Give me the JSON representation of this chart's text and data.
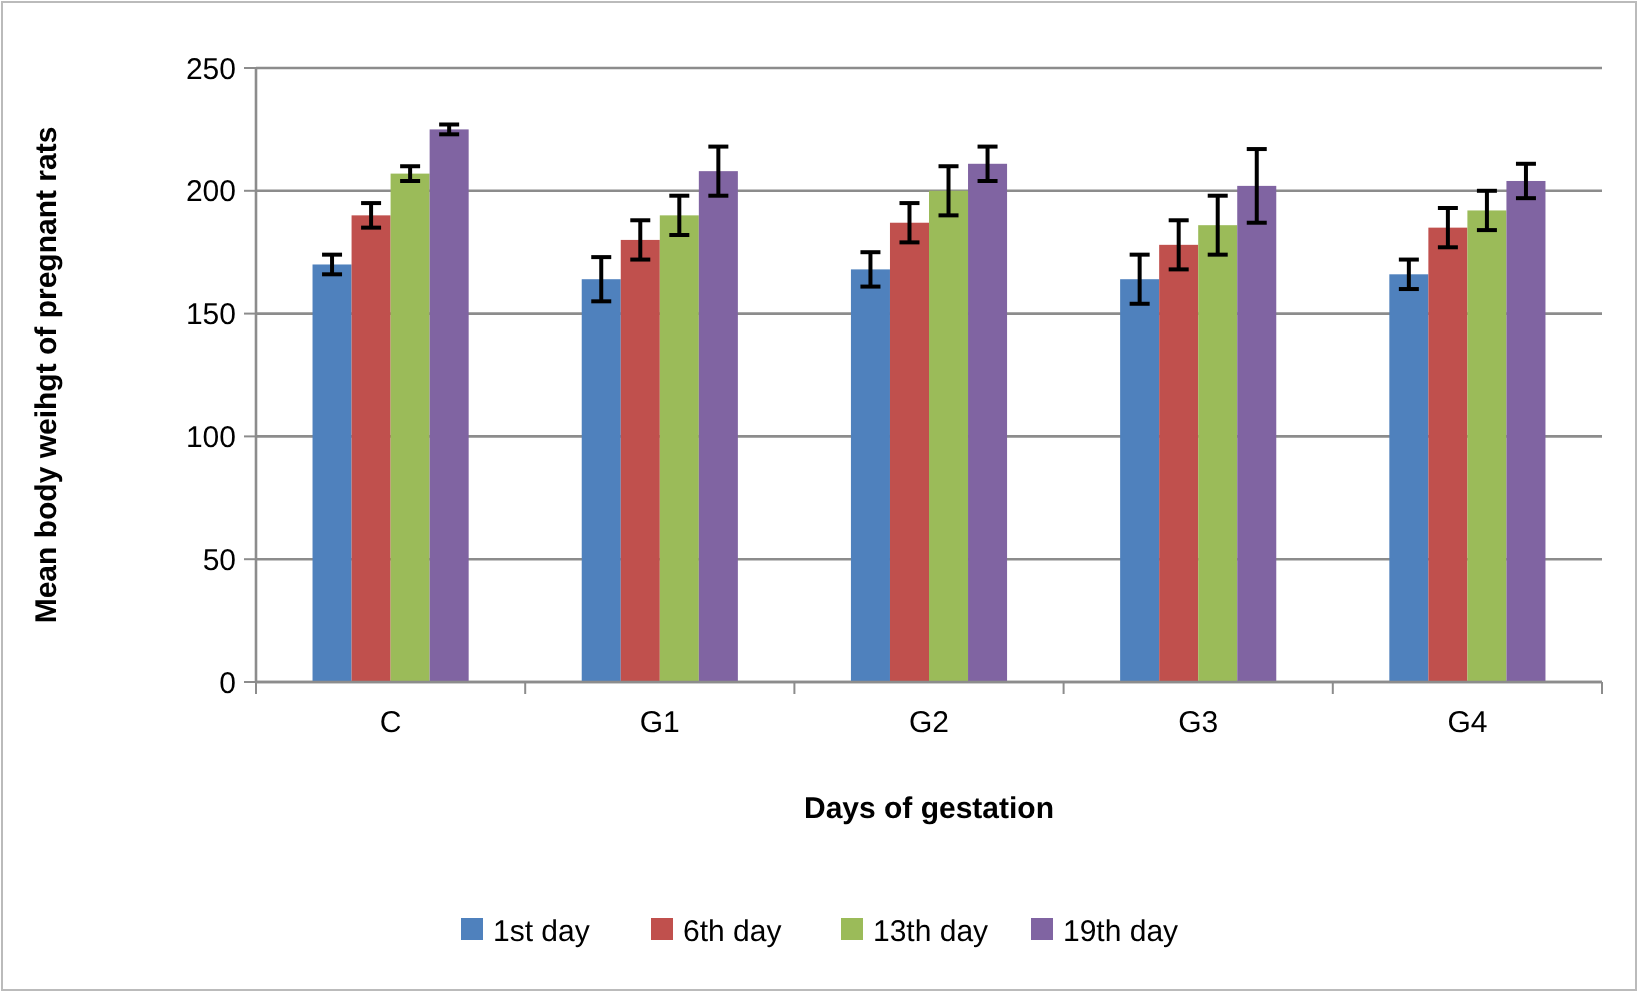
{
  "chart_data": {
    "type": "bar",
    "xlabel": "Days of gestation",
    "ylabel": "Mean body weihgt of pregnant rats",
    "categories": [
      "C",
      "G1",
      "G2",
      "G3",
      "G4"
    ],
    "series": [
      {
        "name": "1st day",
        "color": "#4f81bd",
        "values": [
          170,
          164,
          168,
          164,
          166
        ],
        "errors": [
          4,
          9,
          7,
          10,
          6
        ]
      },
      {
        "name": "6th day",
        "color": "#c0504d",
        "values": [
          190,
          180,
          187,
          178,
          185
        ],
        "errors": [
          5,
          8,
          8,
          10,
          8
        ]
      },
      {
        "name": "13th day",
        "color": "#9bbb59",
        "values": [
          207,
          190,
          200,
          186,
          192
        ],
        "errors": [
          3,
          8,
          10,
          12,
          8
        ]
      },
      {
        "name": "19th day",
        "color": "#8064a2",
        "values": [
          225,
          208,
          211,
          202,
          204
        ],
        "errors": [
          2,
          10,
          7,
          15,
          7
        ]
      }
    ],
    "ylim": [
      0,
      250
    ],
    "yticks": [
      0,
      50,
      100,
      150,
      200,
      250
    ],
    "grid": "y",
    "legend": "bottom"
  }
}
